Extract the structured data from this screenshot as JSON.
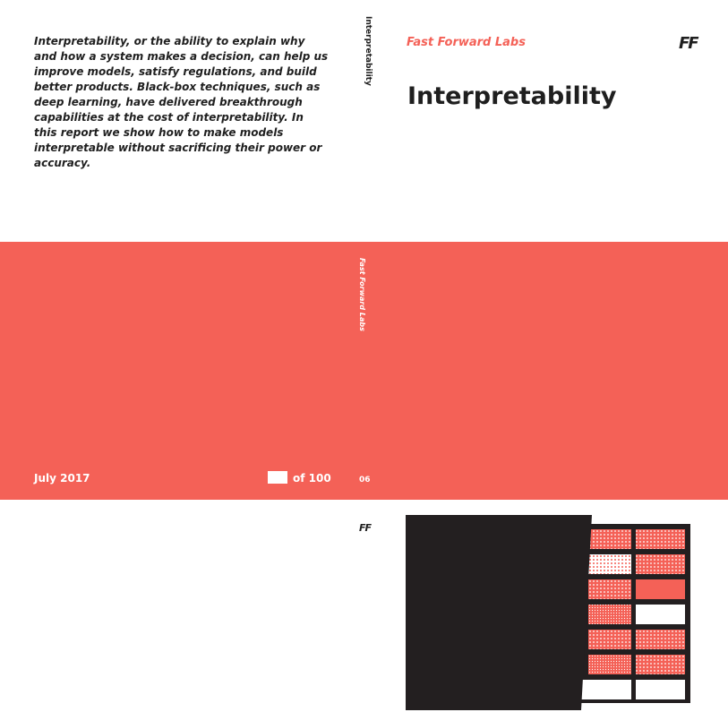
{
  "back_cover": {
    "blurb": "Interpretability, or the ability to explain why and how a system makes a decision, can help us improve models, satisfy regulations, and build better products. Black-box techniques, such as deep learning, have delivered breakthrough capabilities at the cost of interpretability. In this report we show how to make models interpretable without sacrificing their power or accuracy.",
    "date": "July 2017",
    "of_count": "of 100"
  },
  "spine": {
    "title": "Interpretability",
    "brand": "Fast Forward Labs",
    "issue": "06",
    "logo": "FF"
  },
  "front_cover": {
    "brand": "Fast Forward Labs",
    "logo": "FF",
    "title": "Interpretability"
  },
  "colors": {
    "accent": "#f46157",
    "dark": "#231f20",
    "light": "#ffffff"
  }
}
